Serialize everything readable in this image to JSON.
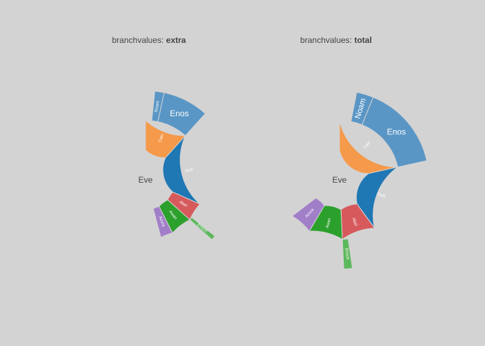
{
  "chart_data": [
    {
      "type": "sunburst",
      "title_prefix": "branchvalues: ",
      "title_bold": "extra",
      "branchvalues": "extra",
      "labels": [
        "Eve",
        "Cain",
        "Seth",
        "Enos",
        "Noam",
        "Abel",
        "Awan",
        "Enoch",
        "Azura"
      ],
      "parents": [
        "",
        "Eve",
        "Eve",
        "Seth",
        "Seth",
        "Eve",
        "Eve",
        "Awan",
        "Eve"
      ],
      "values": [
        65,
        14,
        12,
        10,
        2,
        6,
        6,
        1,
        4
      ],
      "colors": {
        "Cain": "#f5994a",
        "Seth": "#1f77b4",
        "Enos": "#5a96c5",
        "Noam": "#5a96c5",
        "Abel": "#d65a5c",
        "Awan": "#2ca02c",
        "Enoch": "#5cb85c",
        "Azura": "#a17ec8"
      }
    },
    {
      "type": "sunburst",
      "title_prefix": "branchvalues: ",
      "title_bold": "total",
      "branchvalues": "total",
      "labels": [
        "Eve",
        "Cain",
        "Seth",
        "Enos",
        "Noam",
        "Abel",
        "Awan",
        "Enoch",
        "Azura"
      ],
      "parents": [
        "",
        "Eve",
        "Eve",
        "Seth",
        "Seth",
        "Eve",
        "Eve",
        "Awan",
        "Eve"
      ],
      "values": [
        65,
        14,
        12,
        10,
        2,
        6,
        6,
        1,
        4
      ],
      "colors": {
        "Cain": "#f5994a",
        "Seth": "#1f77b4",
        "Enos": "#5a96c5",
        "Noam": "#5a96c5",
        "Abel": "#d65a5c",
        "Awan": "#2ca02c",
        "Enoch": "#5cb85c",
        "Azura": "#a17ec8"
      }
    }
  ]
}
